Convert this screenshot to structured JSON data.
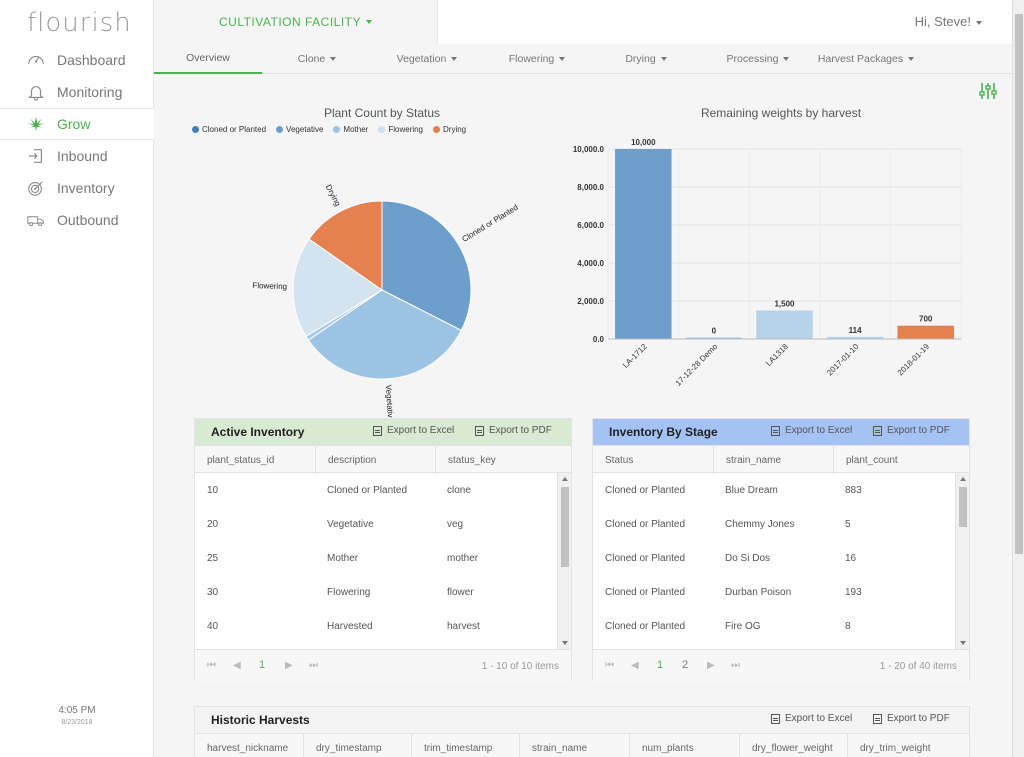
{
  "app": {
    "logo": "flourish",
    "clock_time": "4:05 PM",
    "clock_date": "8/23/2018"
  },
  "sidebar": {
    "items": [
      {
        "label": "Dashboard",
        "icon": "gauge-icon"
      },
      {
        "label": "Monitoring",
        "icon": "bell-icon"
      },
      {
        "label": "Grow",
        "icon": "cannabis-leaf-icon"
      },
      {
        "label": "Inbound",
        "icon": "sign-in-icon"
      },
      {
        "label": "Inventory",
        "icon": "target-icon"
      },
      {
        "label": "Outbound",
        "icon": "truck-icon"
      }
    ]
  },
  "header": {
    "facility": "CULTIVATION FACILITY",
    "user": "Hi, Steve!"
  },
  "tabs": [
    {
      "label": "Overview",
      "dropdown": false
    },
    {
      "label": "Clone",
      "dropdown": true
    },
    {
      "label": "Vegetation",
      "dropdown": true
    },
    {
      "label": "Flowering",
      "dropdown": true
    },
    {
      "label": "Drying",
      "dropdown": true
    },
    {
      "label": "Processing",
      "dropdown": true
    },
    {
      "label": "Harvest Packages",
      "dropdown": true
    }
  ],
  "colors": {
    "accent": "#4caf50",
    "cloned": "#6e9fcc",
    "vegetative": "#9dc3e3",
    "mother": "#a9c9e6",
    "flowering": "#d4e3f0",
    "drying": "#e5804f",
    "active_head": "#d9ead3",
    "stage_head": "#a4c2f4"
  },
  "pie": {
    "title": "Plant Count by Status",
    "legend": [
      "Cloned or Planted",
      "Vegetative",
      "Mother",
      "Flowering",
      "Drying"
    ],
    "slices": [
      {
        "label": "Cloned or Planted",
        "value": 32.5,
        "color": "#6e9fcc",
        "show_label": true
      },
      {
        "label": "Vegetative",
        "value": 33,
        "color": "#9dc3e3",
        "show_label": true
      },
      {
        "label": "Mother",
        "value": 0.8,
        "color": "#a9c9e6",
        "show_label": false
      },
      {
        "label": "Flowering",
        "value": 18.4,
        "color": "#d4e3f0",
        "show_label": true
      },
      {
        "label": "Drying",
        "value": 15.3,
        "color": "#e5804f",
        "show_label": true
      }
    ]
  },
  "chart_data": {
    "type": "bar",
    "title": "Remaining weights by harvest",
    "categories": [
      "LA-1712",
      "17-12-28 Demo",
      "LA1318",
      "2017-01-10",
      "2018-01-19"
    ],
    "values": [
      10000,
      0,
      1500,
      114,
      700
    ],
    "value_labels": [
      "10,000",
      "0",
      "1,500",
      "114",
      "700"
    ],
    "colors": [
      "#6e9fcc",
      "#a9c9e6",
      "#b6d3ea",
      "#b6d3ea",
      "#e5804f"
    ],
    "yticks": [
      0,
      2000,
      4000,
      6000,
      8000,
      10000
    ],
    "ytick_labels": [
      "0.0",
      "2,000.0",
      "4,000.0",
      "6,000.0",
      "8,000.0",
      "10,000.0"
    ],
    "ylim": [
      0,
      10000
    ],
    "grid": true
  },
  "active_inventory": {
    "title": "Active Inventory",
    "export_excel": "Export to Excel",
    "export_pdf": "Export to PDF",
    "columns": [
      "plant_status_id",
      "description",
      "status_key"
    ],
    "rows": [
      [
        "10",
        "Cloned or Planted",
        "clone"
      ],
      [
        "20",
        "Vegetative",
        "veg"
      ],
      [
        "25",
        "Mother",
        "mother"
      ],
      [
        "30",
        "Flowering",
        "flower"
      ],
      [
        "40",
        "Harvested",
        "harvest"
      ]
    ],
    "pages": [
      "1"
    ],
    "info": "1 - 10 of 10 items"
  },
  "inventory_stage": {
    "title": "Inventory By Stage",
    "export_excel": "Export to Excel",
    "export_pdf": "Export to PDF",
    "columns": [
      "Status",
      "strain_name",
      "plant_count"
    ],
    "rows": [
      [
        "Cloned or Planted",
        "Blue Dream",
        "883"
      ],
      [
        "Cloned or Planted",
        "Chemmy Jones",
        "5"
      ],
      [
        "Cloned or Planted",
        "Do Si Dos",
        "16"
      ],
      [
        "Cloned or Planted",
        "Durban Poison",
        "193"
      ],
      [
        "Cloned or Planted",
        "Fire OG",
        "8"
      ]
    ],
    "pages": [
      "1",
      "2"
    ],
    "info": "1 - 20 of 40 items"
  },
  "historic": {
    "title": "Historic Harvests",
    "export_excel": "Export to Excel",
    "export_pdf": "Export to PDF",
    "columns": [
      "harvest_nickname",
      "dry_timestamp",
      "trim_timestamp",
      "strain_name",
      "num_plants",
      "dry_flower_weight",
      "dry_trim_weight"
    ]
  }
}
